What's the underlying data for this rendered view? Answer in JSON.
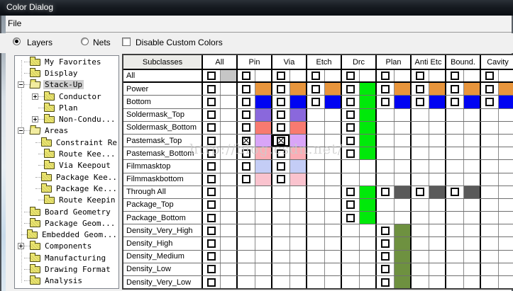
{
  "window": {
    "title": "Color Dialog"
  },
  "menu": {
    "file_label": "File"
  },
  "controls": {
    "layers_label": "Layers",
    "nets_label": "Nets",
    "disable_label": "Disable Custom Colors",
    "layers_selected": true,
    "nets_selected": false,
    "disable_checked": false
  },
  "tree": {
    "items": [
      {
        "label": "My Favorites",
        "level": 1,
        "box": null,
        "open": false,
        "selected": false
      },
      {
        "label": "Display",
        "level": 1,
        "box": null,
        "open": false,
        "selected": false
      },
      {
        "label": "Stack-Up",
        "level": 1,
        "box": "-",
        "open": true,
        "selected": true
      },
      {
        "label": "Conductor",
        "level": 2,
        "box": "+",
        "open": false,
        "selected": false
      },
      {
        "label": "Plan",
        "level": 2,
        "box": null,
        "open": false,
        "selected": false
      },
      {
        "label": "Non-Condu...",
        "level": 2,
        "box": "+",
        "open": false,
        "selected": false
      },
      {
        "label": "Areas",
        "level": 1,
        "box": "-",
        "open": true,
        "selected": false
      },
      {
        "label": "Constraint Re",
        "level": 2,
        "box": null,
        "open": false,
        "selected": false
      },
      {
        "label": "Route Kee...",
        "level": 2,
        "box": null,
        "open": false,
        "selected": false
      },
      {
        "label": "Via Keepout",
        "level": 2,
        "box": null,
        "open": false,
        "selected": false
      },
      {
        "label": "Package Kee..",
        "level": 2,
        "box": null,
        "open": false,
        "selected": false
      },
      {
        "label": "Package Ke...",
        "level": 2,
        "box": null,
        "open": false,
        "selected": false
      },
      {
        "label": "Route Keepin",
        "level": 2,
        "box": null,
        "open": false,
        "selected": false
      },
      {
        "label": "Board Geometry",
        "level": 1,
        "box": null,
        "open": false,
        "selected": false
      },
      {
        "label": "Package Geom...",
        "level": 1,
        "box": null,
        "open": false,
        "selected": false
      },
      {
        "label": "Embedded Geom...",
        "level": 1,
        "box": null,
        "open": false,
        "selected": false
      },
      {
        "label": "Components",
        "level": 1,
        "box": "+",
        "open": false,
        "selected": false
      },
      {
        "label": "Manufacturing",
        "level": 1,
        "box": null,
        "open": false,
        "selected": false
      },
      {
        "label": "Drawing Format",
        "level": 1,
        "box": null,
        "open": false,
        "selected": false
      },
      {
        "label": "Analysis",
        "level": 1,
        "box": null,
        "open": false,
        "selected": false
      }
    ]
  },
  "table": {
    "header": [
      "Subclasses",
      "All",
      "Pin",
      "Via",
      "Etch",
      "Drc",
      "Plan",
      "Anti Etc",
      "Bound.",
      "Cavity"
    ],
    "palette": {
      "gray": "#C6C6C6",
      "orange": "#E8953C",
      "blue": "#0004F2",
      "green": "#00E90A",
      "purple": "#8A68DC",
      "salmon": "#F87A70",
      "lavender": "#D9A5F8",
      "pink": "#FBADB5",
      "periwinkle": "#C4CDF6",
      "lightpink": "#FAC3CE",
      "darkgray": "#5A5A5A",
      "olive": "#6E9140"
    },
    "rows": [
      {
        "label": "All",
        "thick": true,
        "cells": [
          {
            "c": "gray"
          },
          {},
          {},
          {},
          {},
          {},
          {},
          {},
          {}
        ]
      },
      {
        "label": "Power",
        "cells": [
          {},
          {
            "c": "orange"
          },
          {
            "c": "orange"
          },
          {
            "c": "orange"
          },
          {
            "c": "green"
          },
          {
            "c": "orange"
          },
          {
            "c": "orange"
          },
          {
            "c": "orange"
          },
          {
            "c": "orange"
          }
        ]
      },
      {
        "label": "Bottom",
        "cells": [
          {},
          {
            "c": "blue"
          },
          {
            "c": "blue"
          },
          {
            "c": "blue"
          },
          {
            "c": "green"
          },
          {
            "c": "blue"
          },
          {
            "c": "blue"
          },
          {
            "c": "blue"
          },
          {
            "c": "blue"
          }
        ]
      },
      {
        "label": "Soldermask_Top",
        "cells": [
          {},
          {
            "c": "purple"
          },
          {
            "c": "purple"
          },
          null,
          {
            "c": "green"
          },
          null,
          null,
          null,
          null
        ]
      },
      {
        "label": "Soldermask_Bottom",
        "cells": [
          {},
          {
            "c": "salmon"
          },
          {
            "c": "salmon"
          },
          null,
          {
            "c": "green"
          },
          null,
          null,
          null,
          null
        ]
      },
      {
        "label": "Pastemask_Top",
        "cells": [
          {},
          {
            "c": "lavender",
            "x": true
          },
          {
            "c": "lavender",
            "x": true,
            "f": true
          },
          null,
          {
            "c": "green"
          },
          null,
          null,
          null,
          null
        ]
      },
      {
        "label": "Pastemask_Bottom",
        "cells": [
          {},
          {
            "c": "pink"
          },
          {
            "c": "pink"
          },
          null,
          {
            "c": "green"
          },
          null,
          null,
          null,
          null
        ]
      },
      {
        "label": "Filmmasktop",
        "cells": [
          {},
          {
            "c": "periwinkle"
          },
          {
            "c": "periwinkle"
          },
          null,
          null,
          null,
          null,
          null,
          null
        ]
      },
      {
        "label": "Filmmaskbottom",
        "cells": [
          {},
          {
            "c": "lightpink"
          },
          {
            "c": "lightpink"
          },
          null,
          null,
          null,
          null,
          null,
          null
        ]
      },
      {
        "label": "Through All",
        "cells": [
          {},
          null,
          null,
          null,
          {
            "c": "green"
          },
          {
            "c": "darkgray"
          },
          {
            "c": "darkgray"
          },
          {
            "c": "darkgray"
          },
          null
        ]
      },
      {
        "label": "Package_Top",
        "cells": [
          {},
          null,
          null,
          null,
          {
            "c": "green"
          },
          null,
          null,
          null,
          null
        ]
      },
      {
        "label": "Package_Bottom",
        "cells": [
          {},
          null,
          null,
          null,
          {
            "c": "green"
          },
          null,
          null,
          null,
          null
        ]
      },
      {
        "label": "Density_Very_High",
        "cells": [
          {},
          null,
          null,
          null,
          null,
          {
            "c": "olive"
          },
          null,
          null,
          null
        ]
      },
      {
        "label": "Density_High",
        "cells": [
          {},
          null,
          null,
          null,
          null,
          {
            "c": "olive"
          },
          null,
          null,
          null
        ]
      },
      {
        "label": "Density_Medium",
        "cells": [
          {},
          null,
          null,
          null,
          null,
          {
            "c": "olive"
          },
          null,
          null,
          null
        ]
      },
      {
        "label": "Density_Low",
        "cells": [
          {},
          null,
          null,
          null,
          null,
          {
            "c": "olive"
          },
          null,
          null,
          null
        ]
      },
      {
        "label": "Density_Very_Low",
        "cells": [
          {},
          null,
          null,
          null,
          null,
          {
            "c": "olive"
          },
          null,
          null,
          null
        ]
      }
    ]
  },
  "watermark": {
    "text": "http://blog.csdn.net/"
  }
}
